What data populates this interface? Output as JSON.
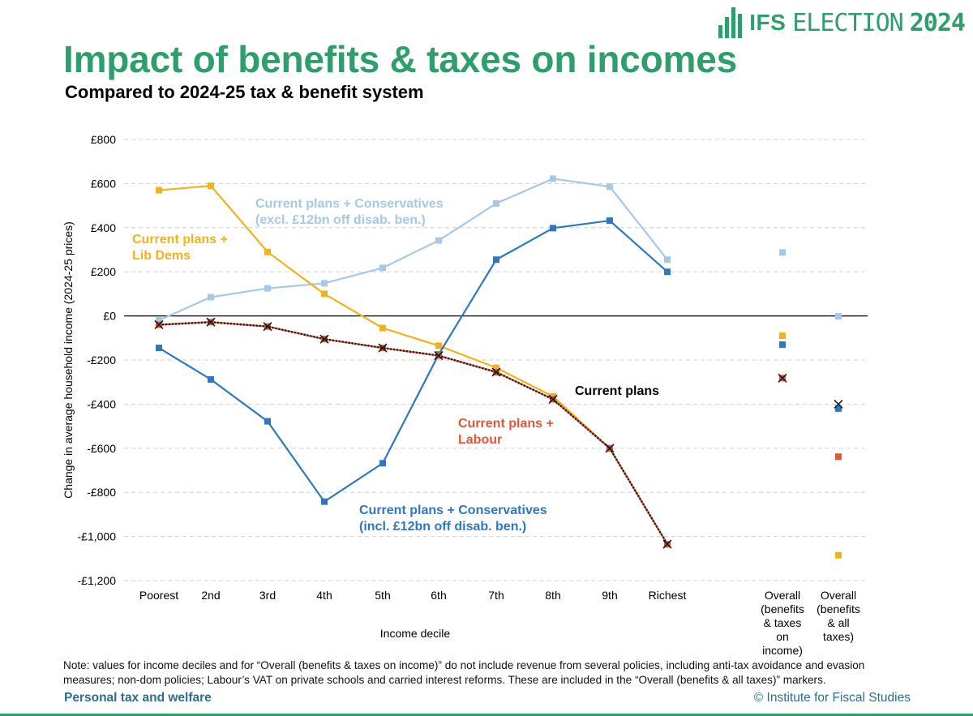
{
  "brand": {
    "ifs": "IFS",
    "election": "ELECTION",
    "year": "2024"
  },
  "header": {
    "title": "Impact of benefits & taxes on incomes",
    "subtitle": "Compared to 2024-25 tax & benefit system"
  },
  "chart_data": {
    "type": "line",
    "ylabel": "Change in average household income (2024-25 prices)",
    "xlabel": "Income decile",
    "ylim": [
      -1200,
      800
    ],
    "yticks": [
      800,
      600,
      400,
      200,
      0,
      -200,
      -400,
      -600,
      -800,
      -1000,
      -1200
    ],
    "ytick_labels": [
      "£800",
      "£600",
      "£400",
      "£200",
      "£0",
      "-£200",
      "-£400",
      "-£600",
      "-£800",
      "-£1,000",
      "-£1,200"
    ],
    "grid": true,
    "categories": [
      "Poorest",
      "2nd",
      "3rd",
      "4th",
      "5th",
      "6th",
      "7th",
      "8th",
      "9th",
      "Richest"
    ],
    "overall_categories": [
      [
        "Overall",
        "(benefits",
        "& taxes",
        "on",
        "income)"
      ],
      [
        "Overall",
        "(benefits",
        "&  all",
        "taxes)"
      ]
    ],
    "series": [
      {
        "name": "Current plans + Lib Dems",
        "label_lines": [
          "Current plans +",
          "Lib Dems"
        ],
        "color": "#f2b21b",
        "line_style": "solid",
        "marker": "square",
        "values": [
          570,
          590,
          290,
          100,
          -55,
          -135,
          -235,
          -365,
          -600,
          -1035
        ],
        "overall": [
          -90,
          -1085
        ]
      },
      {
        "name": "Current plans + Conservatives (excl. £12bn off disab. ben.)",
        "label_lines": [
          "Current plans + Conservatives",
          "(excl. £12bn off disab. ben.)"
        ],
        "color": "#a6c8e8",
        "line_style": "solid",
        "marker": "square",
        "values": [
          -20,
          85,
          125,
          148,
          218,
          342,
          510,
          622,
          586,
          255
        ],
        "overall": [
          288,
          -2
        ]
      },
      {
        "name": "Current plans + Conservatives (incl. £12bn off disab. ben.)",
        "label_lines": [
          "Current plans + Conservatives",
          "(incl. £12bn off disab. ben.)"
        ],
        "color": "#2e78c0",
        "line_style": "solid",
        "marker": "square",
        "values": [
          -145,
          -288,
          -478,
          -842,
          -668,
          -175,
          255,
          398,
          432,
          200
        ],
        "overall": [
          -130,
          -420
        ]
      },
      {
        "name": "Current plans + Labour",
        "label_lines": [
          "Current plans +",
          "Labour"
        ],
        "color": "#e2573a",
        "line_style": "solid",
        "marker": "square",
        "values": [
          -40,
          -28,
          -48,
          -105,
          -145,
          -180,
          -255,
          -378,
          -600,
          -1035
        ],
        "overall": [
          -282,
          -638
        ]
      },
      {
        "name": "Current plans",
        "label_lines": [
          "Current plans"
        ],
        "color": "#1a1a1a",
        "line_style": "dotted",
        "marker": "x",
        "values": [
          -40,
          -28,
          -48,
          -105,
          -145,
          -180,
          -255,
          -378,
          -600,
          -1035
        ],
        "overall": [
          -282,
          -400
        ]
      }
    ]
  },
  "note": "Note: values for income deciles and for “Overall (benefits & taxes on income)” do not include revenue from several policies, including anti-tax avoidance and evasion measures; non-dom policies; Labour’s VAT on private schools and carried interest reforms. These are included in the “Overall (benefits & all taxes)” markers.",
  "footer": {
    "section": "Personal tax and welfare",
    "copyright": "© Institute for Fiscal Studies"
  }
}
